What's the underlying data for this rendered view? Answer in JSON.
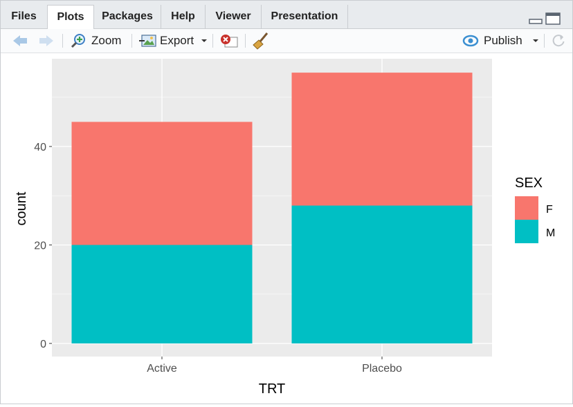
{
  "tabs": [
    {
      "label": "Files",
      "active": false
    },
    {
      "label": "Plots",
      "active": true
    },
    {
      "label": "Packages",
      "active": false
    },
    {
      "label": "Help",
      "active": false
    },
    {
      "label": "Viewer",
      "active": false
    },
    {
      "label": "Presentation",
      "active": false
    }
  ],
  "toolbar": {
    "zoom_label": "Zoom",
    "export_label": "Export",
    "publish_label": "Publish"
  },
  "colors": {
    "F": "#F8766D",
    "M": "#00BFC4",
    "panel_bg": "#EBEBEB"
  },
  "chart_data": {
    "type": "bar",
    "stacked": true,
    "categories": [
      "Active",
      "Placebo"
    ],
    "series": [
      {
        "name": "M",
        "values": [
          20,
          28
        ]
      },
      {
        "name": "F",
        "values": [
          25,
          27
        ]
      }
    ],
    "xlabel": "TRT",
    "ylabel": "count",
    "yticks": [
      0,
      20,
      40
    ],
    "ylim": [
      0,
      57
    ],
    "legend": {
      "title": "SEX",
      "entries": [
        "F",
        "M"
      ],
      "position": "right"
    },
    "grid": true
  }
}
